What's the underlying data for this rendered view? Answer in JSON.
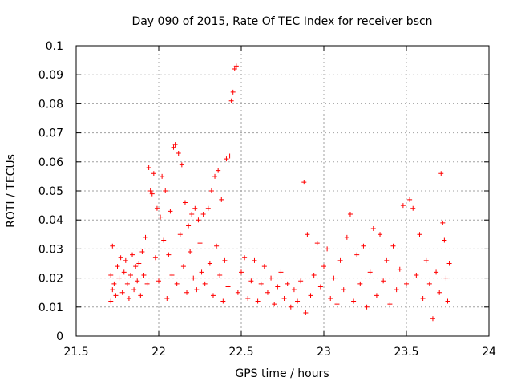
{
  "chart_data": {
    "type": "scatter",
    "title": "Day 090 of 2015, Rate Of TEC Index for receiver bscn",
    "xlabel": "GPS time / hours",
    "ylabel": "ROTI / TECUs",
    "xlim": [
      21.5,
      24
    ],
    "ylim": [
      0,
      0.1
    ],
    "xticks": [
      "21.5",
      "22",
      "22.5",
      "23",
      "23.5",
      "24"
    ],
    "yticks": [
      "0",
      "0.01",
      "0.02",
      "0.03",
      "0.04",
      "0.05",
      "0.06",
      "0.07",
      "0.08",
      "0.09",
      "0.1"
    ],
    "grid": true,
    "marker": "+",
    "color": "#ff0000",
    "series": [
      {
        "name": "ROTI",
        "points": [
          [
            21.71,
            0.012
          ],
          [
            21.71,
            0.021
          ],
          [
            21.72,
            0.016
          ],
          [
            21.72,
            0.031
          ],
          [
            21.73,
            0.018
          ],
          [
            21.74,
            0.014
          ],
          [
            21.75,
            0.024
          ],
          [
            21.76,
            0.02
          ],
          [
            21.77,
            0.027
          ],
          [
            21.78,
            0.015
          ],
          [
            21.79,
            0.022
          ],
          [
            21.8,
            0.026
          ],
          [
            21.81,
            0.018
          ],
          [
            21.82,
            0.013
          ],
          [
            21.83,
            0.021
          ],
          [
            21.84,
            0.028
          ],
          [
            21.85,
            0.016
          ],
          [
            21.86,
            0.024
          ],
          [
            21.87,
            0.019
          ],
          [
            21.88,
            0.025
          ],
          [
            21.89,
            0.014
          ],
          [
            21.9,
            0.029
          ],
          [
            21.91,
            0.021
          ],
          [
            21.92,
            0.034
          ],
          [
            21.93,
            0.018
          ],
          [
            21.94,
            0.058
          ],
          [
            21.95,
            0.05
          ],
          [
            21.96,
            0.049
          ],
          [
            21.97,
            0.056
          ],
          [
            21.98,
            0.027
          ],
          [
            21.99,
            0.044
          ],
          [
            22.0,
            0.019
          ],
          [
            22.01,
            0.041
          ],
          [
            22.02,
            0.055
          ],
          [
            22.03,
            0.033
          ],
          [
            22.04,
            0.05
          ],
          [
            22.05,
            0.013
          ],
          [
            22.06,
            0.028
          ],
          [
            22.07,
            0.043
          ],
          [
            22.08,
            0.021
          ],
          [
            22.09,
            0.065
          ],
          [
            22.1,
            0.066
          ],
          [
            22.11,
            0.018
          ],
          [
            22.12,
            0.063
          ],
          [
            22.13,
            0.035
          ],
          [
            22.14,
            0.059
          ],
          [
            22.15,
            0.024
          ],
          [
            22.16,
            0.046
          ],
          [
            22.17,
            0.015
          ],
          [
            22.18,
            0.038
          ],
          [
            22.19,
            0.029
          ],
          [
            22.2,
            0.042
          ],
          [
            22.21,
            0.02
          ],
          [
            22.22,
            0.044
          ],
          [
            22.23,
            0.016
          ],
          [
            22.24,
            0.04
          ],
          [
            22.25,
            0.032
          ],
          [
            22.26,
            0.022
          ],
          [
            22.27,
            0.042
          ],
          [
            22.28,
            0.018
          ],
          [
            22.3,
            0.044
          ],
          [
            22.31,
            0.025
          ],
          [
            22.32,
            0.05
          ],
          [
            22.33,
            0.014
          ],
          [
            22.34,
            0.055
          ],
          [
            22.35,
            0.031
          ],
          [
            22.36,
            0.057
          ],
          [
            22.37,
            0.021
          ],
          [
            22.38,
            0.047
          ],
          [
            22.39,
            0.012
          ],
          [
            22.4,
            0.026
          ],
          [
            22.41,
            0.061
          ],
          [
            22.42,
            0.017
          ],
          [
            22.43,
            0.062
          ],
          [
            22.44,
            0.081
          ],
          [
            22.45,
            0.084
          ],
          [
            22.46,
            0.092
          ],
          [
            22.47,
            0.093
          ],
          [
            22.48,
            0.015
          ],
          [
            22.5,
            0.022
          ],
          [
            22.52,
            0.027
          ],
          [
            22.54,
            0.013
          ],
          [
            22.56,
            0.019
          ],
          [
            22.58,
            0.026
          ],
          [
            22.6,
            0.012
          ],
          [
            22.62,
            0.018
          ],
          [
            22.64,
            0.024
          ],
          [
            22.66,
            0.015
          ],
          [
            22.68,
            0.02
          ],
          [
            22.7,
            0.011
          ],
          [
            22.72,
            0.017
          ],
          [
            22.74,
            0.022
          ],
          [
            22.76,
            0.013
          ],
          [
            22.78,
            0.018
          ],
          [
            22.8,
            0.01
          ],
          [
            22.82,
            0.016
          ],
          [
            22.84,
            0.012
          ],
          [
            22.86,
            0.019
          ],
          [
            22.88,
            0.053
          ],
          [
            22.89,
            0.008
          ],
          [
            22.9,
            0.035
          ],
          [
            22.92,
            0.014
          ],
          [
            22.94,
            0.021
          ],
          [
            22.96,
            0.032
          ],
          [
            22.98,
            0.017
          ],
          [
            23.0,
            0.024
          ],
          [
            23.02,
            0.03
          ],
          [
            23.04,
            0.013
          ],
          [
            23.06,
            0.02
          ],
          [
            23.08,
            0.011
          ],
          [
            23.1,
            0.026
          ],
          [
            23.12,
            0.016
          ],
          [
            23.14,
            0.034
          ],
          [
            23.16,
            0.042
          ],
          [
            23.18,
            0.012
          ],
          [
            23.2,
            0.028
          ],
          [
            23.22,
            0.018
          ],
          [
            23.24,
            0.031
          ],
          [
            23.26,
            0.01
          ],
          [
            23.28,
            0.022
          ],
          [
            23.3,
            0.037
          ],
          [
            23.32,
            0.014
          ],
          [
            23.34,
            0.035
          ],
          [
            23.36,
            0.019
          ],
          [
            23.38,
            0.026
          ],
          [
            23.4,
            0.011
          ],
          [
            23.42,
            0.031
          ],
          [
            23.44,
            0.016
          ],
          [
            23.46,
            0.023
          ],
          [
            23.48,
            0.045
          ],
          [
            23.5,
            0.018
          ],
          [
            23.52,
            0.047
          ],
          [
            23.54,
            0.044
          ],
          [
            23.56,
            0.021
          ],
          [
            23.58,
            0.035
          ],
          [
            23.6,
            0.013
          ],
          [
            23.62,
            0.026
          ],
          [
            23.64,
            0.018
          ],
          [
            23.66,
            0.006
          ],
          [
            23.68,
            0.022
          ],
          [
            23.7,
            0.015
          ],
          [
            23.71,
            0.056
          ],
          [
            23.72,
            0.039
          ],
          [
            23.73,
            0.033
          ],
          [
            23.74,
            0.02
          ],
          [
            23.75,
            0.012
          ],
          [
            23.76,
            0.025
          ]
        ]
      }
    ]
  }
}
